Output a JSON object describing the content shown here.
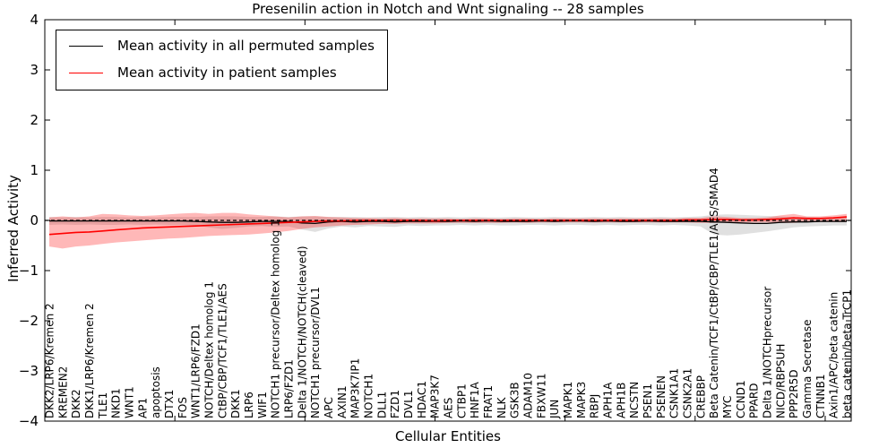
{
  "figure": {
    "title": "Presenilin action in Notch and Wnt signaling -- 28 samples",
    "xlabel": "Cellular Entities",
    "ylabel": "Inferred Activity"
  },
  "legend": {
    "entries": [
      {
        "label": "Mean activity in all permuted samples",
        "color": "#000000"
      },
      {
        "label": "Mean activity in patient samples",
        "color": "#ff0000"
      }
    ]
  },
  "chart_data": {
    "type": "line",
    "title": "Presenilin action in Notch and Wnt signaling -- 28 samples",
    "xlabel": "Cellular Entities",
    "ylabel": "Inferred Activity",
    "ylim": [
      -4,
      4
    ],
    "yticks": [
      4,
      3,
      2,
      1,
      0,
      -1,
      -2,
      -3,
      -4
    ],
    "grid": false,
    "legend_position": "upper left",
    "zero_line": {
      "y": 0,
      "style": "dashed",
      "color": "#000000"
    },
    "band_note": "shaded bands show spread around each mean line",
    "categories": [
      "DKK2/LRP6/Kremen 2",
      "KREMEN2",
      "DKK2",
      "DKK1/LRP6/Kremen 2",
      "TLE1",
      "NKD1",
      "WNT1",
      "AP1",
      "apoptosis",
      "DTX1",
      "FOS",
      "WNT1/LRP6/FZD1",
      "NOTCH/Deltex homolog 1",
      "CtBP/CBP/TCF1/TLE1/AES",
      "DKK1",
      "LRP6",
      "WIF1",
      "NOTCH1 precursor/Deltex homolog 1",
      "LRP6/FZD1",
      "Delta 1/NOTCH/NOTCH(cleaved)",
      "NOTCH1 precursor/DVL1",
      "APC",
      "AXIN1",
      "MAP3K7IP1",
      "NOTCH1",
      "DLL1",
      "FZD1",
      "DVL1",
      "HDAC1",
      "MAP3K7",
      "AES",
      "CTBP1",
      "HNF1A",
      "FRAT1",
      "NLK",
      "GSK3B",
      "ADAM10",
      "FBXW11",
      "JUN",
      "MAPK1",
      "MAPK3",
      "RBPJ",
      "APH1A",
      "APH1B",
      "NCSTN",
      "PSEN1",
      "PSENEN",
      "CSNK1A1",
      "CSNK2A1",
      "CREBBP",
      "Beta Catenin/TCF1/CtBP/CBP/TLE1/AES/SMAD4",
      "MYC",
      "CCND1",
      "PPARD",
      "Delta 1/NOTCHprecursor",
      "NICD/RBPSUH",
      "PPP2R5D",
      "Gamma Secretase",
      "CTNNB1",
      "Axin1/APC/beta catenin",
      "beta catenin/beta TrCP1"
    ],
    "series": [
      {
        "name": "Mean activity in all permuted samples",
        "color": "#000000",
        "band_color": "rgba(0,0,0,0.12)",
        "values": [
          -0.01,
          -0.01,
          -0.01,
          -0.01,
          -0.01,
          -0.01,
          -0.01,
          -0.01,
          -0.01,
          -0.01,
          -0.01,
          -0.02,
          -0.03,
          -0.04,
          -0.04,
          -0.03,
          -0.02,
          -0.02,
          -0.02,
          -0.05,
          -0.06,
          -0.03,
          -0.02,
          -0.03,
          -0.02,
          -0.02,
          -0.03,
          -0.02,
          -0.02,
          -0.02,
          -0.02,
          -0.01,
          -0.02,
          -0.01,
          -0.02,
          -0.02,
          -0.02,
          -0.01,
          -0.02,
          -0.01,
          -0.01,
          -0.02,
          -0.01,
          -0.02,
          -0.02,
          -0.01,
          -0.02,
          -0.02,
          -0.02,
          -0.02,
          -0.03,
          -0.04,
          -0.05,
          -0.06,
          -0.06,
          -0.04,
          -0.03,
          -0.03,
          -0.02,
          -0.02,
          -0.02
        ],
        "band_upper": [
          0.07,
          0.06,
          0.07,
          0.06,
          0.07,
          0.07,
          0.06,
          0.07,
          0.06,
          0.07,
          0.07,
          0.07,
          0.08,
          0.08,
          0.08,
          0.07,
          0.07,
          0.08,
          0.07,
          0.08,
          0.08,
          0.07,
          0.07,
          0.07,
          0.06,
          0.07,
          0.07,
          0.06,
          0.07,
          0.06,
          0.07,
          0.06,
          0.07,
          0.06,
          0.06,
          0.07,
          0.06,
          0.06,
          0.07,
          0.06,
          0.06,
          0.07,
          0.06,
          0.07,
          0.06,
          0.06,
          0.07,
          0.06,
          0.07,
          0.08,
          0.11,
          0.12,
          0.11,
          0.1,
          0.09,
          0.08,
          0.07,
          0.07,
          0.06,
          0.06,
          0.06
        ],
        "band_lower": [
          -0.09,
          -0.08,
          -0.09,
          -0.08,
          -0.09,
          -0.09,
          -0.08,
          -0.09,
          -0.08,
          -0.09,
          -0.09,
          -0.1,
          -0.14,
          -0.17,
          -0.15,
          -0.12,
          -0.11,
          -0.13,
          -0.12,
          -0.18,
          -0.23,
          -0.16,
          -0.12,
          -0.14,
          -0.11,
          -0.12,
          -0.13,
          -0.1,
          -0.11,
          -0.1,
          -0.1,
          -0.09,
          -0.1,
          -0.09,
          -0.1,
          -0.1,
          -0.09,
          -0.09,
          -0.1,
          -0.09,
          -0.09,
          -0.1,
          -0.09,
          -0.1,
          -0.09,
          -0.09,
          -0.1,
          -0.09,
          -0.1,
          -0.12,
          -0.28,
          -0.3,
          -0.28,
          -0.25,
          -0.22,
          -0.18,
          -0.14,
          -0.12,
          -0.11,
          -0.1,
          -0.1
        ]
      },
      {
        "name": "Mean activity in patient samples",
        "color": "#ff0000",
        "band_color": "rgba(255,0,0,0.28)",
        "values": [
          -0.28,
          -0.26,
          -0.24,
          -0.23,
          -0.21,
          -0.19,
          -0.17,
          -0.15,
          -0.14,
          -0.13,
          -0.12,
          -0.11,
          -0.1,
          -0.09,
          -0.08,
          -0.07,
          -0.06,
          -0.05,
          -0.04,
          -0.03,
          -0.02,
          -0.01,
          -0.01,
          0.0,
          0.0,
          0.0,
          0.0,
          0.0,
          0.0,
          -0.01,
          0.0,
          0.0,
          0.0,
          0.0,
          0.0,
          0.0,
          0.0,
          0.0,
          0.0,
          0.0,
          0.0,
          0.0,
          0.0,
          0.0,
          0.0,
          0.0,
          0.0,
          0.0,
          0.01,
          0.01,
          0.02,
          0.02,
          0.01,
          0.01,
          0.02,
          0.03,
          0.05,
          0.04,
          0.04,
          0.05,
          0.07
        ],
        "band_upper": [
          0.06,
          0.08,
          0.06,
          0.08,
          0.13,
          0.12,
          0.1,
          0.09,
          0.1,
          0.12,
          0.14,
          0.15,
          0.13,
          0.15,
          0.15,
          0.12,
          0.1,
          0.08,
          0.06,
          0.08,
          0.09,
          0.07,
          0.06,
          0.05,
          0.05,
          0.04,
          0.05,
          0.04,
          0.04,
          0.04,
          0.04,
          0.03,
          0.04,
          0.04,
          0.03,
          0.04,
          0.04,
          0.03,
          0.04,
          0.04,
          0.04,
          0.04,
          0.04,
          0.04,
          0.04,
          0.04,
          0.04,
          0.04,
          0.05,
          0.05,
          0.08,
          0.07,
          0.05,
          0.05,
          0.06,
          0.1,
          0.13,
          0.08,
          0.08,
          0.1,
          0.13
        ],
        "band_lower": [
          -0.52,
          -0.56,
          -0.52,
          -0.5,
          -0.47,
          -0.44,
          -0.42,
          -0.4,
          -0.38,
          -0.36,
          -0.35,
          -0.33,
          -0.31,
          -0.3,
          -0.29,
          -0.28,
          -0.26,
          -0.24,
          -0.21,
          -0.17,
          -0.14,
          -0.12,
          -0.1,
          -0.09,
          -0.08,
          -0.07,
          -0.07,
          -0.06,
          -0.06,
          -0.06,
          -0.05,
          -0.05,
          -0.05,
          -0.05,
          -0.05,
          -0.04,
          -0.05,
          -0.04,
          -0.04,
          -0.04,
          -0.04,
          -0.04,
          -0.04,
          -0.04,
          -0.04,
          -0.04,
          -0.04,
          -0.04,
          -0.04,
          -0.05,
          -0.05,
          -0.04,
          -0.04,
          -0.04,
          -0.04,
          -0.05,
          -0.05,
          -0.03,
          -0.03,
          -0.03,
          -0.03
        ]
      }
    ]
  }
}
